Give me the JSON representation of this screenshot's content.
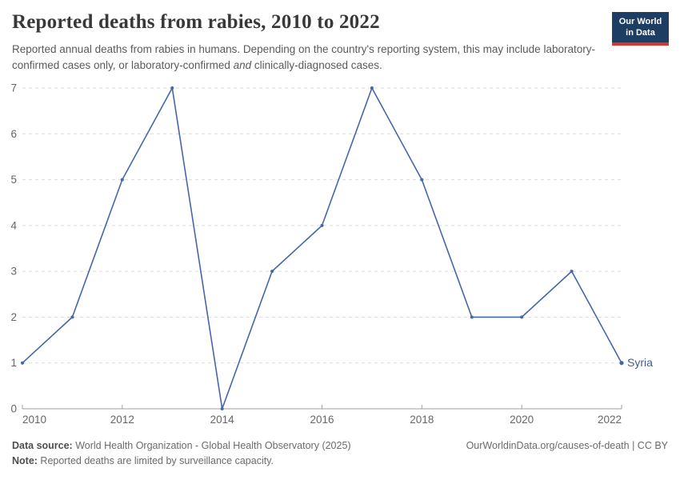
{
  "header": {
    "title": "Reported deaths from rabies, 2010 to 2022",
    "subtitle_part1": "Reported annual deaths from rabies in humans. Depending on the country's reporting system, this may include laboratory-confirmed cases only, or laboratory-confirmed ",
    "subtitle_italic": "and",
    "subtitle_part2": " clinically-diagnosed cases.",
    "logo": {
      "line1": "Our World",
      "line2": "in Data",
      "bg_color": "#1d3d63",
      "bar_color": "#d8352a"
    }
  },
  "chart_data": {
    "type": "line",
    "title": "Reported deaths from rabies, 2010 to 2022",
    "xlabel": "",
    "ylabel": "",
    "x": [
      2010,
      2011,
      2012,
      2013,
      2014,
      2015,
      2016,
      2017,
      2018,
      2019,
      2020,
      2021,
      2022
    ],
    "series": [
      {
        "name": "Syria",
        "color": "#4667a7",
        "values": [
          1,
          2,
          5,
          7,
          0,
          3,
          4,
          7,
          5,
          2,
          2,
          3,
          1
        ]
      }
    ],
    "xlim": [
      2010,
      2022
    ],
    "ylim": [
      0,
      7
    ],
    "x_ticks": [
      2010,
      2012,
      2014,
      2016,
      2018,
      2020,
      2022
    ],
    "y_ticks": [
      0,
      1,
      2,
      3,
      4,
      5,
      6,
      7
    ],
    "grid": "horizontal-dashed",
    "legend_position": "end-of-line-label",
    "colors": {
      "grid": "#dadada",
      "axis": "#a1a1a1",
      "tick_label": "#666666",
      "entity_label": "#3d5c99"
    }
  },
  "footer": {
    "datasource_label": "Data source:",
    "datasource_text": " World Health Organization - Global Health Observatory (2025)",
    "url": "OurWorldinData.org/causes-of-death | CC BY",
    "note_label": "Note:",
    "note_text": " Reported deaths are limited by surveillance capacity."
  }
}
